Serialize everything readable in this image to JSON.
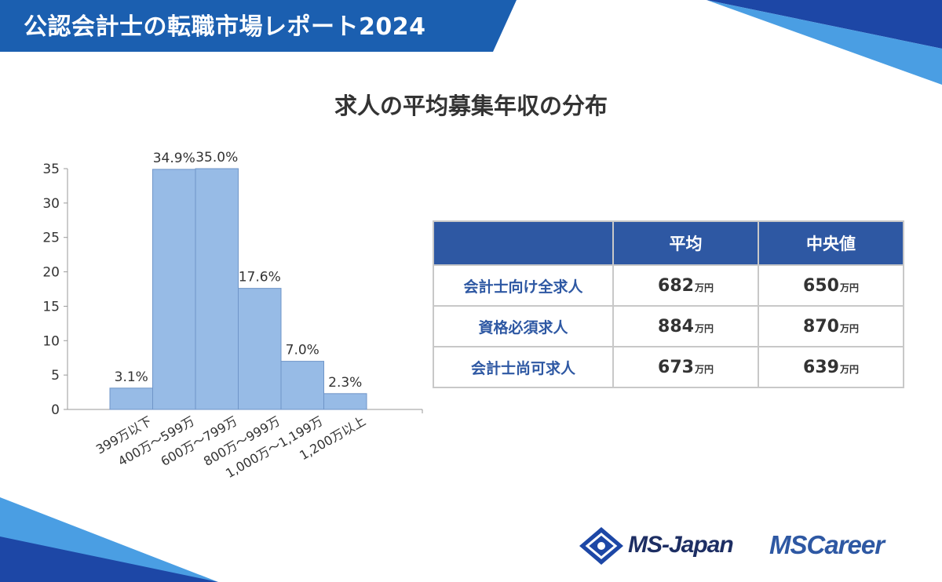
{
  "header": {
    "title": "公認会計士の転職市場レポート2024"
  },
  "chart_data": {
    "type": "bar",
    "title": "求人の平均募集年収の分布",
    "categories": [
      "399万以下",
      "400万～599万",
      "600万～799万",
      "800万～999万",
      "1,000万～1,199万",
      "1,200万以上"
    ],
    "values": [
      3.1,
      34.9,
      35.0,
      17.6,
      7.0,
      2.3
    ],
    "data_labels": [
      "3.1%",
      "34.9%",
      "35.0%",
      "17.6%",
      "7.0%",
      "2.3%"
    ],
    "y_ticks": [
      "0",
      "5",
      "10",
      "15",
      "20",
      "25",
      "30",
      "35"
    ],
    "ylim": [
      0,
      35
    ],
    "xlabel": "",
    "ylabel": "",
    "grid": false,
    "bar_color": "#97bbe6",
    "bar_edge_color": "#6f95c8"
  },
  "summary_table": {
    "headers": [
      "",
      "平均",
      "中央値"
    ],
    "unit": "万円",
    "rows": [
      {
        "label": "会計士向け全求人",
        "average": "682",
        "median": "650"
      },
      {
        "label": "資格必須求人",
        "average": "884",
        "median": "870"
      },
      {
        "label": "会計士尚可求人",
        "average": "673",
        "median": "639"
      }
    ]
  },
  "logos": {
    "ms_japan": "MS-Japan",
    "ms_career": "MSCareer"
  },
  "colors": {
    "brand_blue": "#1b5fb0",
    "table_header": "#2e58a3",
    "accent_light": "#4a9ee3"
  }
}
